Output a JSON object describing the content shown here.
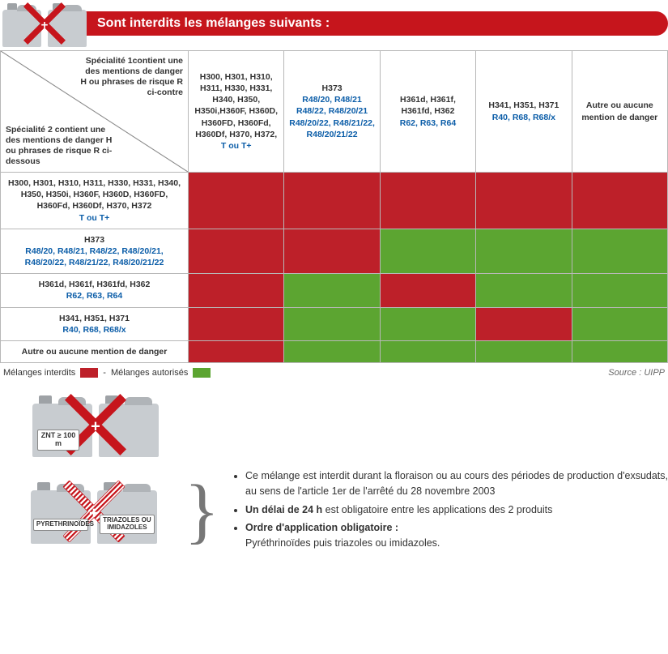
{
  "colors": {
    "banner": "#c6151c",
    "forbidden": "#bd2029",
    "authorized": "#5ca531",
    "blue_text": "#0b5da8",
    "border": "#b8b8b8",
    "canister": "#c8ccd0"
  },
  "header": {
    "title": "Sont interdits les mélanges suivants :"
  },
  "diag": {
    "top": "Spécialité 1contient une des mentions de danger H ou phrases de risque R ci-contre",
    "bottom": "Spécialité 2 contient une des mentions de danger H ou phrases de risque R ci-dessous"
  },
  "columns": [
    {
      "black": "H300, H301, H310, H311,   H330, H331, H340, H350, H350i,H360F, H360D, H360FD, H360Fd, H360Df, H370, H372,",
      "blue": "T ou T+"
    },
    {
      "black": "H373",
      "blue": "R48/20, R48/21 R48/22, R48/20/21 R48/20/22, R48/21/22, R48/20/21/22"
    },
    {
      "black": "H361d, H361f, H361fd, H362",
      "blue": "R62, R63, R64"
    },
    {
      "black": "H341, H351,  H371",
      "blue": "R40, R68, R68/x"
    },
    {
      "black": "Autre ou aucune mention de danger",
      "blue": ""
    }
  ],
  "rows": [
    {
      "black": "H300, H301, H310, H311, H330, H331, H340, H350, H350i, H360F, H360D, H360FD, H360Fd, H360Df, H370, H372",
      "blue": "T ou T+",
      "cells": [
        "red",
        "red",
        "red",
        "red",
        "red"
      ]
    },
    {
      "black": "H373",
      "blue": "R48/20,  R48/21,  R48/22,  R48/20/21, R48/20/22,  R48/21/22,  R48/20/21/22",
      "cells": [
        "red",
        "red",
        "green",
        "green",
        "green"
      ]
    },
    {
      "black": "H361d, H361f, H361fd, H362",
      "blue": "R62, R63, R64",
      "cells": [
        "red",
        "green",
        "red",
        "green",
        "green"
      ]
    },
    {
      "black": "H341, H351,  H371",
      "blue": "R40, R68, R68/x",
      "cells": [
        "red",
        "green",
        "green",
        "red",
        "green"
      ]
    },
    {
      "black": "Autre ou aucune mention de danger",
      "blue": "",
      "cells": [
        "red",
        "green",
        "green",
        "green",
        "green"
      ]
    }
  ],
  "legend": {
    "forbidden": "Mélanges interdits",
    "dash": " - ",
    "authorized": "Mélanges autorisés",
    "source": "Source : UIPP"
  },
  "znt_label": "ZNT ≥ 100 m",
  "pyr_label": "PYRETHRINOÏDES",
  "tri_label": "TRIAZOLES OU IMIDAZOLES",
  "bullets": {
    "b1": "Ce mélange est interdit durant la floraison ou au cours des périodes de production d'exsudats, au sens de l'article 1er de l'arrêté du 28 novembre 2003",
    "b2a": "Un délai de 24 h",
    "b2b": " est obligatoire entre les applications des 2 produits",
    "b3a": "Ordre d'application obligatoire :",
    "b3b": "Pyréthrinoïdes puis triazoles ou imidazoles."
  }
}
